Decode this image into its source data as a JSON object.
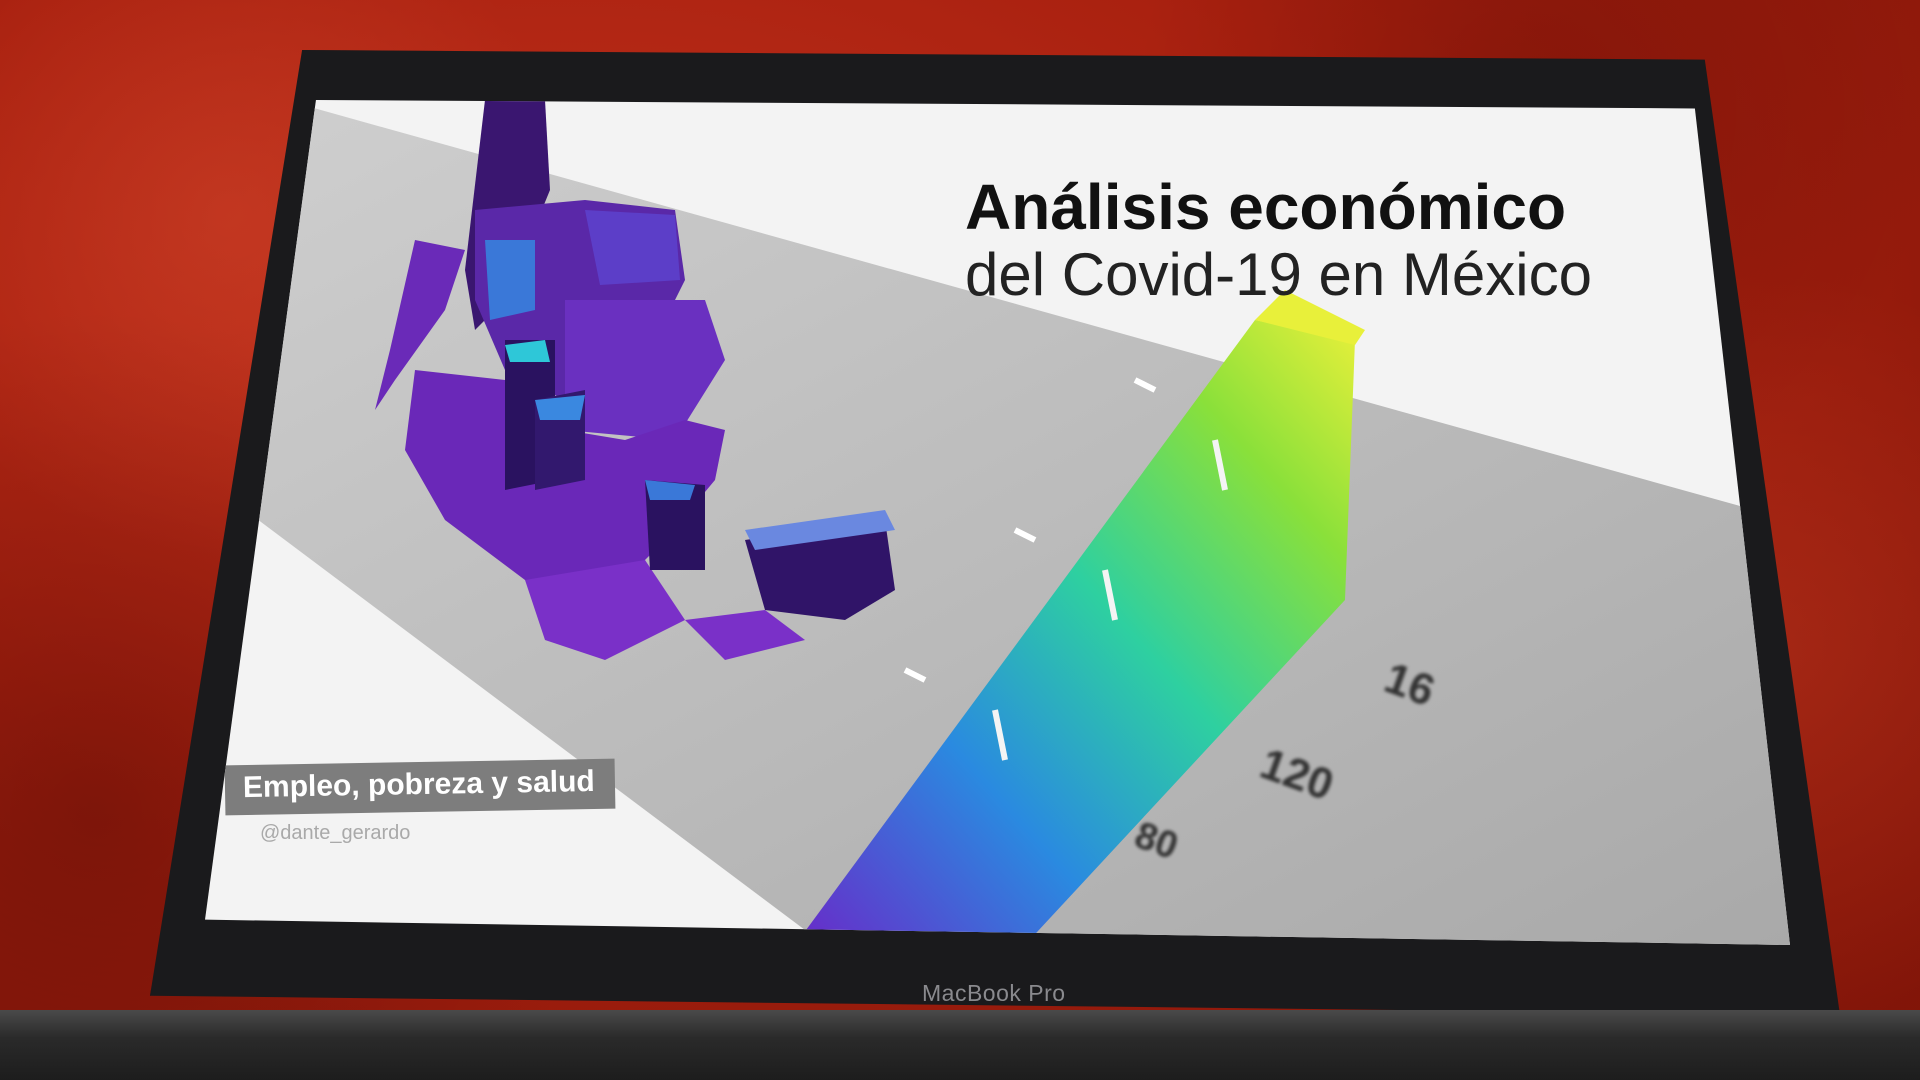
{
  "slide": {
    "title_line1": "Análisis económico",
    "title_line2": "del Covid-19 en México",
    "tagline": "Empleo, pobreza y salud",
    "handle": "@dante_gerardo"
  },
  "legend_ticks": {
    "t1": "80",
    "t2": "120",
    "t3": "16"
  },
  "device": {
    "brand": "MacBook Pro"
  },
  "colors": {
    "wall": "#a8200f",
    "map_purple": "#6a28b8",
    "map_cyan": "#2ec7d8",
    "scale_yellow": "#e6f03a",
    "scale_green": "#6ad84a",
    "tagline_bg": "#7d7d7d"
  }
}
